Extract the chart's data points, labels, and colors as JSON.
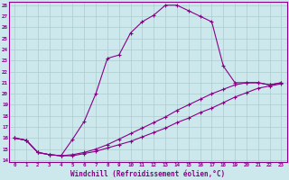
{
  "xlabel": "Windchill (Refroidissement éolien,°C)",
  "bg_color": "#cce8ec",
  "line_color": "#880088",
  "grid_color": "#aacccc",
  "xmin": 0,
  "xmax": 23,
  "ymin": 14,
  "ymax": 28,
  "line1_x": [
    0,
    1,
    2,
    3,
    4,
    5,
    6,
    7,
    8,
    9,
    10,
    11,
    12,
    13,
    14,
    15,
    16,
    17,
    18,
    19,
    20,
    21,
    22,
    23
  ],
  "line1_y": [
    16.0,
    15.8,
    14.7,
    14.5,
    14.4,
    15.9,
    17.5,
    20.0,
    23.2,
    23.5,
    25.5,
    26.5,
    27.1,
    28.0,
    28.0,
    27.5,
    27.0,
    26.5,
    22.5,
    21.0,
    21.0,
    21.0,
    20.8,
    21.0
  ],
  "line2_x": [
    0,
    1,
    2,
    3,
    4,
    5,
    6,
    7,
    8,
    9,
    10,
    11,
    12,
    13,
    14,
    15,
    16,
    17,
    18,
    19,
    20,
    21,
    22,
    23
  ],
  "line2_y": [
    16.0,
    15.8,
    14.7,
    14.5,
    14.4,
    14.5,
    14.7,
    15.0,
    15.4,
    15.9,
    16.4,
    16.9,
    17.4,
    17.9,
    18.5,
    19.0,
    19.5,
    20.0,
    20.4,
    20.8,
    21.0,
    21.0,
    20.8,
    21.0
  ],
  "line3_x": [
    0,
    1,
    2,
    3,
    4,
    5,
    6,
    7,
    8,
    9,
    10,
    11,
    12,
    13,
    14,
    15,
    16,
    17,
    18,
    19,
    20,
    21,
    22,
    23
  ],
  "line3_y": [
    16.0,
    15.8,
    14.7,
    14.5,
    14.4,
    14.4,
    14.6,
    14.8,
    15.1,
    15.4,
    15.7,
    16.1,
    16.5,
    16.9,
    17.4,
    17.8,
    18.3,
    18.7,
    19.2,
    19.7,
    20.1,
    20.5,
    20.7,
    20.9
  ],
  "yticks": [
    14,
    15,
    16,
    17,
    18,
    19,
    20,
    21,
    22,
    23,
    24,
    25,
    26,
    27,
    28
  ],
  "xticks": [
    0,
    1,
    2,
    3,
    4,
    5,
    6,
    7,
    8,
    9,
    10,
    11,
    12,
    13,
    14,
    15,
    16,
    17,
    18,
    19,
    20,
    21,
    22,
    23
  ]
}
